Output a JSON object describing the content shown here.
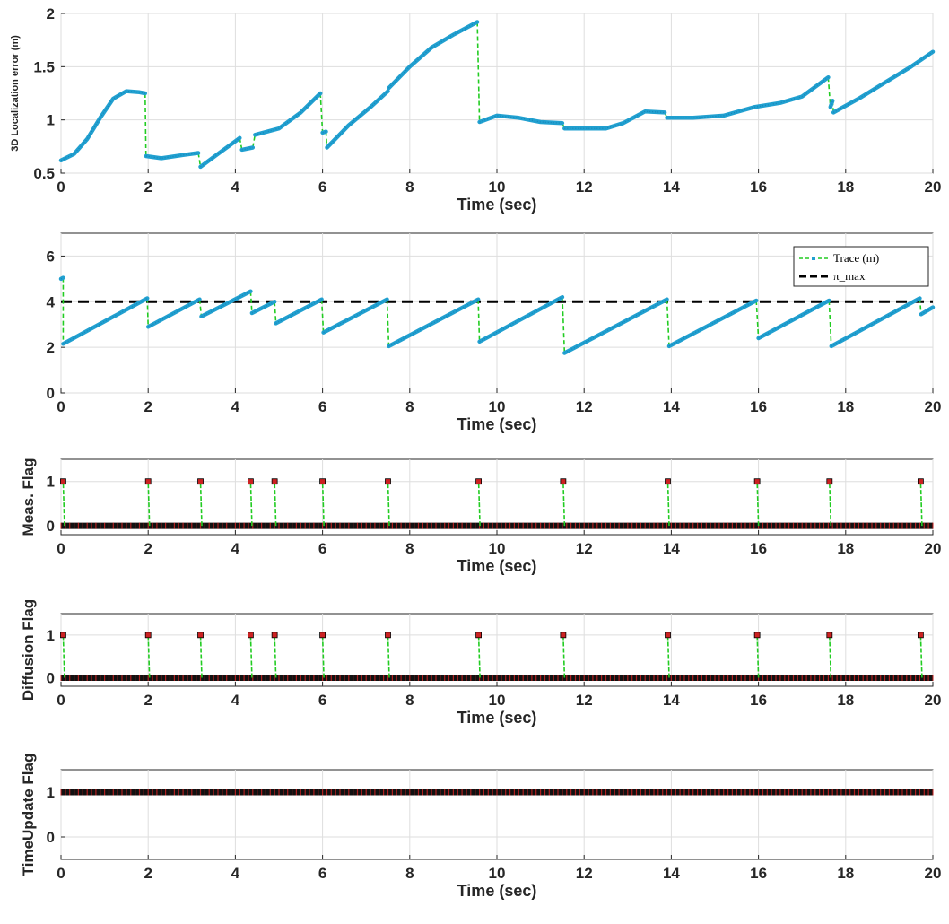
{
  "chart_data": [
    {
      "type": "line",
      "title": "",
      "xlabel": "Time (sec)",
      "ylabel": "3D Localization error (m)",
      "xlim": [
        0,
        20
      ],
      "ylim": [
        0.5,
        2
      ],
      "xticks": [
        0,
        2,
        4,
        6,
        8,
        10,
        12,
        14,
        16,
        18,
        20
      ],
      "yticks": [
        0.5,
        1,
        1.5,
        2
      ],
      "grid": true,
      "series": [
        {
          "color": "#21a0d0",
          "jump_color": "#22cc22",
          "segments": [
            [
              [
                0,
                0.62
              ],
              [
                0.3,
                0.68
              ],
              [
                0.6,
                0.82
              ],
              [
                0.9,
                1.02
              ],
              [
                1.2,
                1.2
              ],
              [
                1.5,
                1.27
              ],
              [
                1.8,
                1.26
              ],
              [
                1.93,
                1.25
              ]
            ],
            [
              [
                1.95,
                0.66
              ],
              [
                2.3,
                0.64
              ],
              [
                2.8,
                0.67
              ],
              [
                3.15,
                0.69
              ]
            ],
            [
              [
                3.2,
                0.56
              ],
              [
                3.6,
                0.68
              ],
              [
                4.0,
                0.8
              ],
              [
                4.1,
                0.83
              ]
            ],
            [
              [
                4.15,
                0.72
              ],
              [
                4.4,
                0.74
              ]
            ],
            [
              [
                4.45,
                0.86
              ],
              [
                5.0,
                0.92
              ],
              [
                5.5,
                1.07
              ],
              [
                5.95,
                1.25
              ]
            ],
            [
              [
                6.0,
                0.88
              ],
              [
                6.08,
                0.89
              ]
            ],
            [
              [
                6.1,
                0.74
              ],
              [
                6.6,
                0.95
              ],
              [
                7.1,
                1.12
              ],
              [
                7.5,
                1.27
              ]
            ],
            [
              [
                7.52,
                1.3
              ],
              [
                8.0,
                1.5
              ],
              [
                8.5,
                1.68
              ],
              [
                9.0,
                1.8
              ],
              [
                9.55,
                1.92
              ]
            ],
            [
              [
                9.6,
                0.98
              ],
              [
                10.0,
                1.04
              ],
              [
                10.5,
                1.02
              ],
              [
                11.0,
                0.98
              ],
              [
                11.5,
                0.97
              ]
            ],
            [
              [
                11.55,
                0.92
              ],
              [
                12.5,
                0.92
              ],
              [
                12.9,
                0.97
              ],
              [
                13.4,
                1.08
              ],
              [
                13.85,
                1.07
              ]
            ],
            [
              [
                13.9,
                1.02
              ],
              [
                14.5,
                1.02
              ],
              [
                15.2,
                1.04
              ],
              [
                15.9,
                1.12
              ],
              [
                16.5,
                1.16
              ],
              [
                17.0,
                1.22
              ],
              [
                17.6,
                1.4
              ]
            ],
            [
              [
                17.65,
                1.12
              ],
              [
                17.7,
                1.18
              ]
            ],
            [
              [
                17.72,
                1.07
              ],
              [
                18.3,
                1.2
              ],
              [
                18.9,
                1.35
              ],
              [
                19.5,
                1.5
              ],
              [
                20.0,
                1.64
              ]
            ]
          ]
        }
      ]
    },
    {
      "type": "line",
      "title": "",
      "xlabel": "Time (sec)",
      "ylabel": "",
      "xlim": [
        0,
        20
      ],
      "ylim": [
        0,
        7
      ],
      "xticks": [
        0,
        2,
        4,
        6,
        8,
        10,
        12,
        14,
        16,
        18,
        20
      ],
      "yticks": [
        0,
        2,
        4,
        6
      ],
      "grid": true,
      "legend_position": "top-right",
      "threshold": 4,
      "series": [
        {
          "name": "Trace (m)",
          "color": "#21a0d0",
          "jump_color": "#22cc22",
          "segments": [
            [
              [
                0,
                5.0
              ],
              [
                0.05,
                5.05
              ]
            ],
            [
              [
                0.05,
                2.15
              ],
              [
                1.98,
                4.15
              ]
            ],
            [
              [
                2.0,
                2.9
              ],
              [
                3.18,
                4.1
              ]
            ],
            [
              [
                3.22,
                3.35
              ],
              [
                4.35,
                4.45
              ]
            ],
            [
              [
                4.38,
                3.5
              ],
              [
                4.9,
                4.0
              ]
            ],
            [
              [
                4.93,
                3.05
              ],
              [
                5.98,
                4.1
              ]
            ],
            [
              [
                6.02,
                2.65
              ],
              [
                7.48,
                4.1
              ]
            ],
            [
              [
                7.52,
                2.05
              ],
              [
                9.57,
                4.1
              ]
            ],
            [
              [
                9.6,
                2.25
              ],
              [
                11.5,
                4.2
              ]
            ],
            [
              [
                11.55,
                1.75
              ],
              [
                13.9,
                4.1
              ]
            ],
            [
              [
                13.95,
                2.05
              ],
              [
                15.95,
                4.05
              ]
            ],
            [
              [
                16.0,
                2.4
              ],
              [
                17.62,
                4.05
              ]
            ],
            [
              [
                17.67,
                2.05
              ],
              [
                19.7,
                4.15
              ]
            ],
            [
              [
                19.73,
                3.45
              ],
              [
                20.0,
                3.75
              ]
            ]
          ]
        },
        {
          "name": "π_max",
          "color": "#000000",
          "constant": 4
        }
      ]
    },
    {
      "type": "scatter",
      "title": "",
      "xlabel": "Time (sec)",
      "ylabel": "Meas. Flag",
      "xlim": [
        0,
        20
      ],
      "ylim": [
        -0.2,
        1.5
      ],
      "xticks": [
        0,
        2,
        4,
        6,
        8,
        10,
        12,
        14,
        16,
        18,
        20
      ],
      "yticks": [
        0,
        1
      ],
      "grid": true,
      "baseline": 0,
      "events": [
        0.05,
        2.0,
        3.2,
        4.35,
        4.9,
        6.0,
        7.5,
        9.58,
        11.52,
        13.92,
        15.97,
        17.63,
        19.72
      ],
      "series": [
        {
          "color": "#cc2222"
        }
      ]
    },
    {
      "type": "scatter",
      "title": "",
      "xlabel": "Time (sec)",
      "ylabel": "Diffusion Flag",
      "xlim": [
        0,
        20
      ],
      "ylim": [
        -0.2,
        1.5
      ],
      "xticks": [
        0,
        2,
        4,
        6,
        8,
        10,
        12,
        14,
        16,
        18,
        20
      ],
      "yticks": [
        0,
        1
      ],
      "grid": true,
      "baseline": 0,
      "events": [
        0.05,
        2.0,
        3.2,
        4.35,
        4.9,
        6.0,
        7.5,
        9.58,
        11.52,
        13.92,
        15.97,
        17.63,
        19.72
      ],
      "series": [
        {
          "color": "#cc2222"
        }
      ]
    },
    {
      "type": "scatter",
      "title": "",
      "xlabel": "Time (sec)",
      "ylabel": "TimeUpdate Flag",
      "xlim": [
        0,
        20
      ],
      "ylim": [
        -0.5,
        1.5
      ],
      "xticks": [
        0,
        2,
        4,
        6,
        8,
        10,
        12,
        14,
        16,
        18,
        20
      ],
      "yticks": [
        0,
        1
      ],
      "grid": true,
      "constant": 1,
      "series": [
        {
          "color": "#cc2222"
        }
      ]
    }
  ]
}
